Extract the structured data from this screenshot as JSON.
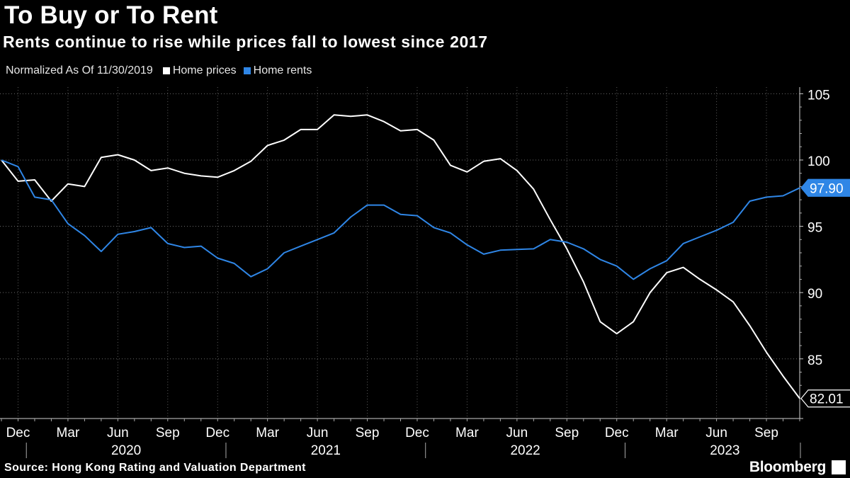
{
  "header": {
    "title": "To Buy or To Rent",
    "subtitle": "Rents continue to rise while prices fall to lowest since 2017"
  },
  "legend": {
    "note": "Normalized As Of 11/30/2019",
    "items": [
      {
        "label": "Home prices",
        "color": "#ffffff"
      },
      {
        "label": "Home rents",
        "color": "#2f86e6"
      }
    ]
  },
  "footer": {
    "source": "Source: Hong Kong Rating and Valuation Department",
    "brand": "Bloomberg"
  },
  "chart_data": {
    "type": "line",
    "title": "To Buy or To Rent",
    "subtitle": "Rents continue to rise while prices fall to lowest since 2017",
    "xlabel": "",
    "ylabel": "Normalized As Of 11/30/2019",
    "ylim": [
      80.5,
      105.5
    ],
    "yticks": [
      85,
      90,
      95,
      100,
      105
    ],
    "grid": true,
    "legend_position": "top-left",
    "x": [
      "2019-11",
      "2019-12",
      "2020-01",
      "2020-02",
      "2020-03",
      "2020-04",
      "2020-05",
      "2020-06",
      "2020-07",
      "2020-08",
      "2020-09",
      "2020-10",
      "2020-11",
      "2020-12",
      "2021-01",
      "2021-02",
      "2021-03",
      "2021-04",
      "2021-05",
      "2021-06",
      "2021-07",
      "2021-08",
      "2021-09",
      "2021-10",
      "2021-11",
      "2021-12",
      "2022-01",
      "2022-02",
      "2022-03",
      "2022-04",
      "2022-05",
      "2022-06",
      "2022-07",
      "2022-08",
      "2022-09",
      "2022-10",
      "2022-11",
      "2022-12",
      "2023-01",
      "2023-02",
      "2023-03",
      "2023-04",
      "2023-05",
      "2023-06",
      "2023-07",
      "2023-08",
      "2023-09",
      "2023-10",
      "2023-11"
    ],
    "x_tick_labels": [
      {
        "label": "Dec",
        "index": 1
      },
      {
        "label": "Mar",
        "index": 4
      },
      {
        "label": "Jun",
        "index": 7
      },
      {
        "label": "Sep",
        "index": 10
      },
      {
        "label": "Dec",
        "index": 13
      },
      {
        "label": "Mar",
        "index": 16
      },
      {
        "label": "Jun",
        "index": 19
      },
      {
        "label": "Sep",
        "index": 22
      },
      {
        "label": "Dec",
        "index": 25
      },
      {
        "label": "Mar",
        "index": 28
      },
      {
        "label": "Jun",
        "index": 31
      },
      {
        "label": "Sep",
        "index": 34
      },
      {
        "label": "Dec",
        "index": 37
      },
      {
        "label": "Mar",
        "index": 40
      },
      {
        "label": "Jun",
        "index": 43
      },
      {
        "label": "Sep",
        "index": 46
      }
    ],
    "year_labels": [
      {
        "label": "2020",
        "center": 7.5
      },
      {
        "label": "2021",
        "center": 19.5
      },
      {
        "label": "2022",
        "center": 31.5
      },
      {
        "label": "2023",
        "center": 43.5
      }
    ],
    "year_separators": [
      1.5,
      13.5,
      25.5,
      37.5,
      49.5
    ],
    "series": [
      {
        "name": "Home prices",
        "color": "#ffffff",
        "last_label": "82.01",
        "values": [
          100.0,
          98.4,
          98.5,
          96.9,
          98.2,
          98.0,
          100.2,
          100.4,
          100.0,
          99.2,
          99.4,
          99.0,
          98.8,
          98.7,
          99.2,
          99.9,
          101.1,
          101.5,
          102.3,
          102.3,
          103.4,
          103.3,
          103.4,
          102.9,
          102.2,
          102.3,
          101.5,
          99.6,
          99.1,
          99.9,
          100.1,
          99.2,
          97.8,
          95.5,
          93.3,
          90.8,
          87.8,
          86.9,
          87.8,
          90.0,
          91.5,
          91.9,
          91.0,
          90.2,
          89.3,
          87.5,
          85.5,
          83.7,
          82.01
        ]
      },
      {
        "name": "Home rents",
        "color": "#2f86e6",
        "last_label": "97.90",
        "values": [
          100.0,
          99.5,
          97.2,
          97.0,
          95.2,
          94.3,
          93.1,
          94.4,
          94.6,
          94.9,
          93.7,
          93.4,
          93.5,
          92.6,
          92.2,
          91.2,
          91.8,
          93.0,
          93.5,
          94.0,
          94.5,
          95.7,
          96.6,
          96.6,
          95.9,
          95.8,
          94.9,
          94.5,
          93.6,
          92.9,
          93.2,
          93.25,
          93.3,
          94.0,
          93.8,
          93.3,
          92.5,
          92.0,
          91.0,
          91.8,
          92.4,
          93.7,
          94.2,
          94.7,
          95.3,
          96.9,
          97.2,
          97.3,
          97.9
        ]
      }
    ]
  }
}
